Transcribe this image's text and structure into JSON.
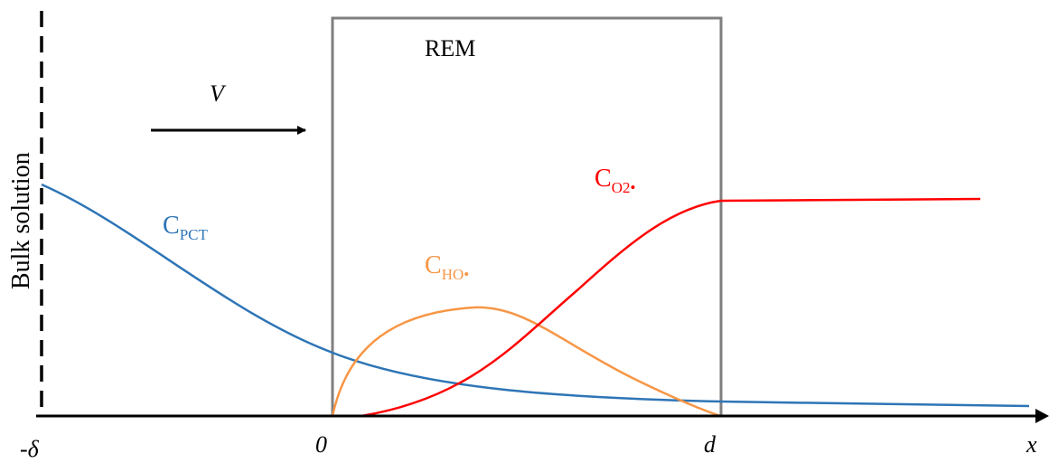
{
  "labels": {
    "region": "REM",
    "velocity": "V",
    "bulk_solution": "Bulk solution",
    "tick_minus_delta": "-δ",
    "tick_zero": "0",
    "tick_d": "d",
    "axis_x": "x"
  },
  "curves": {
    "pct": {
      "main": "C",
      "sub": "PCT",
      "color": "#2e75b6"
    },
    "ho": {
      "main": "C",
      "sub": "HO•",
      "color": "#f79646"
    },
    "o2": {
      "main": "C",
      "sub": "O2•",
      "color": "#ff0000"
    }
  },
  "colors": {
    "rem_border": "#7f7f7f",
    "axis": "#000000"
  }
}
